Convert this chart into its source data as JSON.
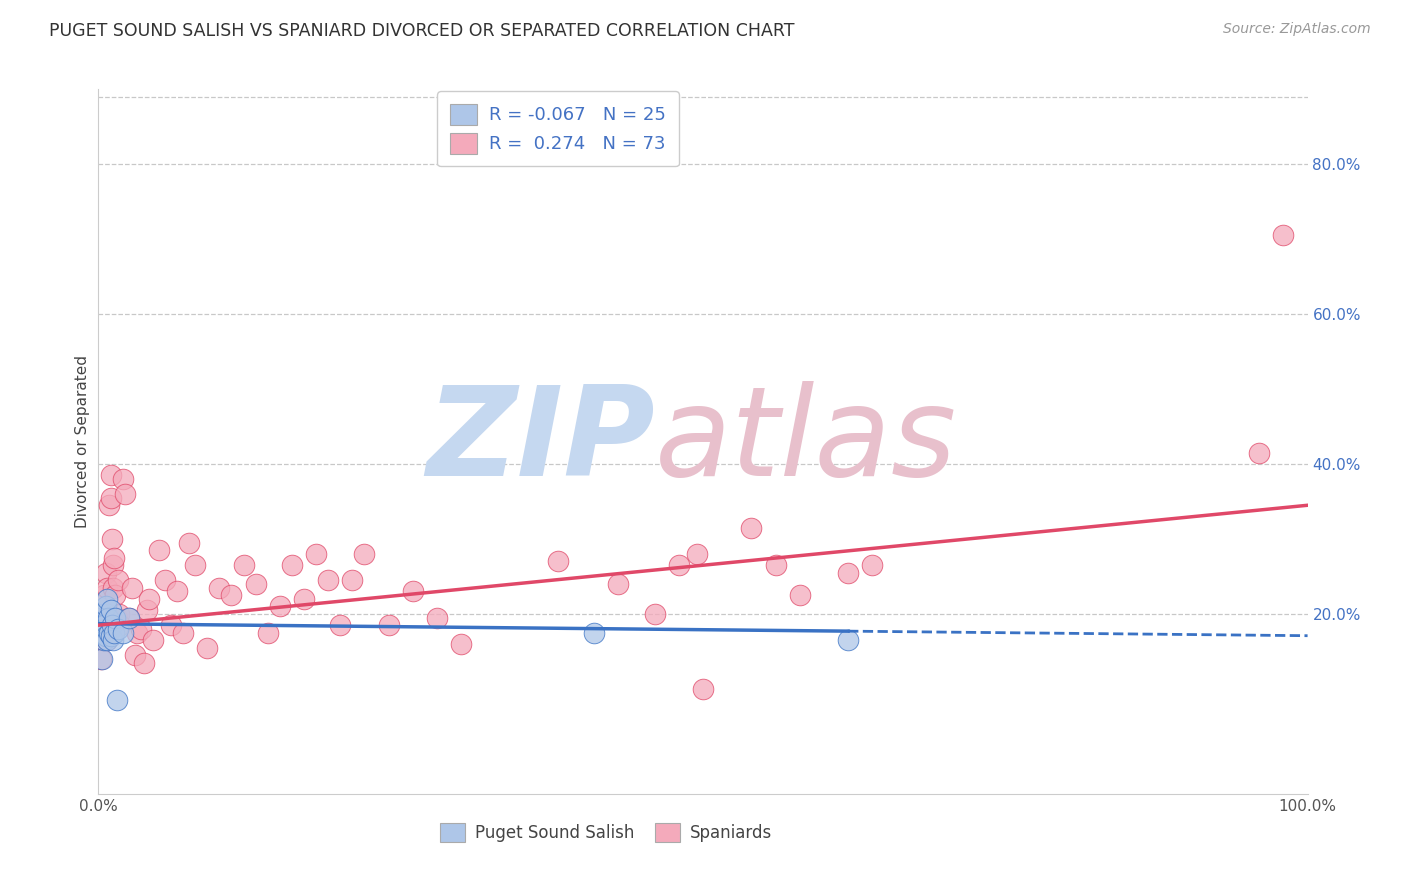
{
  "title": "PUGET SOUND SALISH VS SPANIARD DIVORCED OR SEPARATED CORRELATION CHART",
  "source": "Source: ZipAtlas.com",
  "ylabel": "Divorced or Separated",
  "legend_labels": [
    "Puget Sound Salish",
    "Spaniards"
  ],
  "r_values": [
    -0.067,
    0.274
  ],
  "n_values": [
    25,
    73
  ],
  "blue_scatter_color": "#aec6e8",
  "pink_scatter_color": "#f4aabb",
  "blue_line_color": "#3a72c4",
  "pink_line_color": "#e04868",
  "background_color": "#ffffff",
  "grid_color": "#c8c8c8",
  "xlim": [
    0.0,
    1.0
  ],
  "ylim": [
    -0.04,
    0.9
  ],
  "right_y_ticks": [
    0.2,
    0.4,
    0.6,
    0.8
  ],
  "right_y_labels": [
    "20.0%",
    "40.0%",
    "60.0%",
    "80.0%"
  ],
  "x_ticks": [
    0.0,
    0.2,
    0.4,
    0.6,
    0.8,
    1.0
  ],
  "x_labels": [
    "0.0%",
    "",
    "",
    "",
    "",
    "100.0%"
  ],
  "blue_x": [
    0.001,
    0.002,
    0.003,
    0.003,
    0.004,
    0.005,
    0.005,
    0.006,
    0.006,
    0.007,
    0.007,
    0.008,
    0.009,
    0.01,
    0.01,
    0.011,
    0.012,
    0.013,
    0.014,
    0.015,
    0.016,
    0.02,
    0.025,
    0.41,
    0.62
  ],
  "blue_y": [
    0.175,
    0.195,
    0.185,
    0.14,
    0.2,
    0.185,
    0.165,
    0.21,
    0.17,
    0.22,
    0.165,
    0.195,
    0.175,
    0.205,
    0.17,
    0.185,
    0.165,
    0.175,
    0.195,
    0.085,
    0.18,
    0.175,
    0.195,
    0.175,
    0.165
  ],
  "pink_x": [
    0.001,
    0.002,
    0.003,
    0.004,
    0.005,
    0.005,
    0.006,
    0.006,
    0.007,
    0.007,
    0.008,
    0.009,
    0.009,
    0.01,
    0.01,
    0.011,
    0.012,
    0.012,
    0.013,
    0.014,
    0.015,
    0.016,
    0.017,
    0.018,
    0.02,
    0.022,
    0.025,
    0.028,
    0.03,
    0.032,
    0.035,
    0.038,
    0.04,
    0.042,
    0.045,
    0.05,
    0.055,
    0.06,
    0.065,
    0.07,
    0.075,
    0.08,
    0.09,
    0.1,
    0.11,
    0.12,
    0.13,
    0.14,
    0.15,
    0.16,
    0.17,
    0.18,
    0.19,
    0.2,
    0.21,
    0.22,
    0.24,
    0.26,
    0.28,
    0.3,
    0.38,
    0.43,
    0.46,
    0.48,
    0.495,
    0.5,
    0.54,
    0.56,
    0.58,
    0.62,
    0.64,
    0.96,
    0.98
  ],
  "pink_y": [
    0.175,
    0.14,
    0.195,
    0.165,
    0.225,
    0.185,
    0.255,
    0.19,
    0.165,
    0.235,
    0.2,
    0.185,
    0.345,
    0.355,
    0.385,
    0.3,
    0.265,
    0.235,
    0.275,
    0.225,
    0.195,
    0.245,
    0.2,
    0.185,
    0.38,
    0.36,
    0.195,
    0.235,
    0.145,
    0.175,
    0.18,
    0.135,
    0.205,
    0.22,
    0.165,
    0.285,
    0.245,
    0.185,
    0.23,
    0.175,
    0.295,
    0.265,
    0.155,
    0.235,
    0.225,
    0.265,
    0.24,
    0.175,
    0.21,
    0.265,
    0.22,
    0.28,
    0.245,
    0.185,
    0.245,
    0.28,
    0.185,
    0.23,
    0.195,
    0.16,
    0.27,
    0.24,
    0.2,
    0.265,
    0.28,
    0.1,
    0.315,
    0.265,
    0.225,
    0.255,
    0.265,
    0.415,
    0.705
  ]
}
